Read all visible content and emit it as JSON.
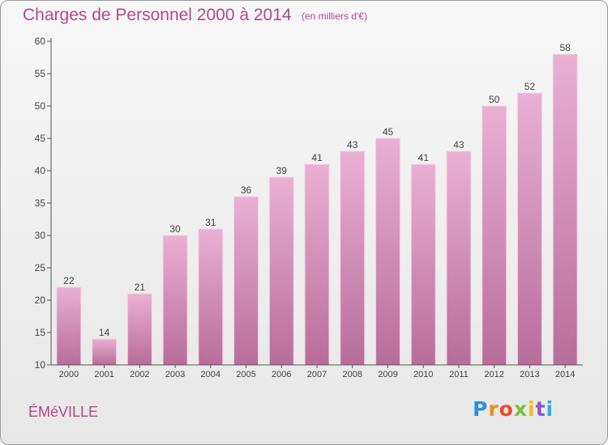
{
  "chart_data": {
    "type": "bar",
    "title": "Charges de Personnel 2000 à 2014",
    "subtitle": "(en milliers d'€)",
    "categories": [
      "2000",
      "2001",
      "2002",
      "2003",
      "2004",
      "2005",
      "2006",
      "2007",
      "2008",
      "2009",
      "2010",
      "2011",
      "2012",
      "2013",
      "2014"
    ],
    "values": [
      22,
      14,
      21,
      30,
      31,
      36,
      39,
      41,
      43,
      45,
      41,
      43,
      50,
      52,
      58
    ],
    "ylim": [
      10,
      60
    ],
    "yticks": [
      10,
      15,
      20,
      25,
      30,
      35,
      40,
      45,
      50,
      55,
      60
    ],
    "xlabel": "",
    "ylabel": "",
    "grid": false,
    "bar_color": "#d9a1c7",
    "bar_gradient": [
      "#eab0d2",
      "#b86d99"
    ]
  },
  "footer": {
    "commune": "ÉMéVILLE",
    "logo_letters": [
      "P",
      "r",
      "o",
      "x",
      "i",
      "t",
      "i"
    ],
    "logo_colors": [
      "#2f8ed9",
      "#f28c1b",
      "#ee4a2e",
      "#7bbf3a",
      "#e9c21a",
      "#8a57c9",
      "#2bb0d6"
    ]
  },
  "colors": {
    "title": "#b04b86",
    "axis": "#555555",
    "label": "#444444"
  }
}
